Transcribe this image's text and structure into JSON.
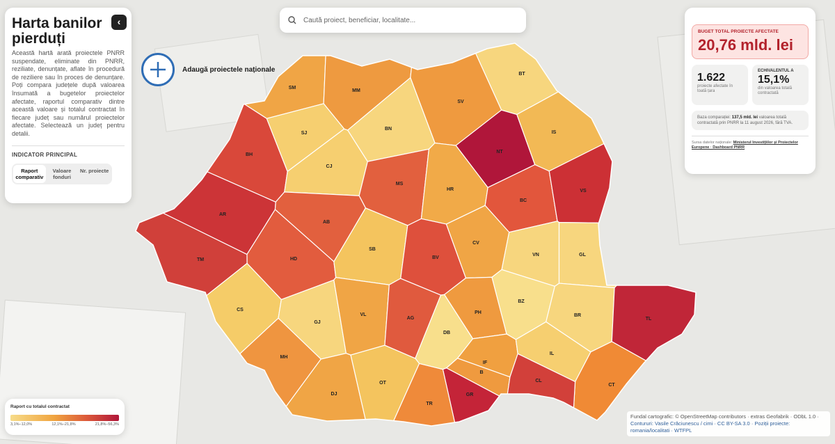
{
  "sidebar": {
    "title": "Harta banilor pierduți",
    "description": "Această hartă arată proiectele PNRR suspendate, eliminate din PNRR, reziliate, denunțate, aflate în procedură de reziliere sau în proces de denunțare. Poți compara județele după valoarea însumată a bugetelor proiectelor afectate, raportul comparativ dintre această valoare și totalul contractat în fiecare județ sau numărul proiectelor afectate. Selectează un județ pentru detalii.",
    "indicator_heading": "INDICATOR PRINCIPAL",
    "tabs": [
      "Raport comparativ",
      "Valoare fonduri",
      "Nr. proiecte"
    ]
  },
  "search": {
    "placeholder": "Caută proiect, beneficiar, localitate..."
  },
  "add_button": {
    "label": "Adaugă proiectele naționale"
  },
  "summary": {
    "budget_label": "BUGET TOTAL PROIECTE AFECTATE",
    "budget_value": "20,76 mld. lei",
    "projects_value": "1.622",
    "projects_caption": "proiecte afectate în toată țara",
    "share_label": "ECHIVALENTUL A",
    "share_value": "15,1%",
    "share_caption": "din valoarea totală contractată",
    "base_prefix": "Baza comparației:",
    "base_value": "137,5 mld. lei",
    "base_suffix": "valoarea totală contractată prin PNRR la 11 august 2026, fără TVA.",
    "source_prefix": "Sursa datelor naționale:",
    "source_link": "Ministerul Investițiilor și Proiectelor Europene · Dashboard PNRR"
  },
  "legend": {
    "title": "Raport cu totalul contractat",
    "ranges": [
      "3,1%–12,0%",
      "12,1%–21,8%",
      "21,8%–56,3%"
    ]
  },
  "attribution": {
    "line1": "Fundal cartografic: © OpenStreetMap contributors · extras Geofabrik · ODbL 1.0 ·",
    "line2": "Contururi: Vasile Crăciunescu / cimi · CC BY-SA 3.0 · Poziții proiecte:",
    "line3": "romania/localitati · WTFPL"
  },
  "counties": [
    {
      "code": "SM",
      "color": "#f0a545"
    },
    {
      "code": "MM",
      "color": "#ee9a40"
    },
    {
      "code": "BT",
      "color": "#f7d67e"
    },
    {
      "code": "SV",
      "color": "#ef9a3f"
    },
    {
      "code": "BH",
      "color": "#d9483a"
    },
    {
      "code": "SJ",
      "color": "#f6cf70"
    },
    {
      "code": "BN",
      "color": "#f7d67e"
    },
    {
      "code": "NT",
      "color": "#b0163a"
    },
    {
      "code": "IS",
      "color": "#f2b955"
    },
    {
      "code": "CJ",
      "color": "#f6cf70"
    },
    {
      "code": "MS",
      "color": "#e2603e"
    },
    {
      "code": "HR",
      "color": "#f1aa48"
    },
    {
      "code": "BC",
      "color": "#e2563c"
    },
    {
      "code": "VS",
      "color": "#cc3035"
    },
    {
      "code": "AR",
      "color": "#cc3437"
    },
    {
      "code": "AB",
      "color": "#e2603e"
    },
    {
      "code": "HD",
      "color": "#e25c3e"
    },
    {
      "code": "TM",
      "color": "#d0403a"
    },
    {
      "code": "SB",
      "color": "#f4c45e"
    },
    {
      "code": "BV",
      "color": "#de503c"
    },
    {
      "code": "CV",
      "color": "#f0a545"
    },
    {
      "code": "VN",
      "color": "#f7d67e"
    },
    {
      "code": "GL",
      "color": "#f7d67e"
    },
    {
      "code": "CS",
      "color": "#f5cc68"
    },
    {
      "code": "GJ",
      "color": "#f7d67e"
    },
    {
      "code": "VL",
      "color": "#f0a545"
    },
    {
      "code": "AG",
      "color": "#e05a3e"
    },
    {
      "code": "PH",
      "color": "#ef9a3f"
    },
    {
      "code": "BZ",
      "color": "#f8df8c"
    },
    {
      "code": "BR",
      "color": "#f7d67e"
    },
    {
      "code": "TL",
      "color": "#c02638"
    },
    {
      "code": "DB",
      "color": "#f8df8c"
    },
    {
      "code": "IF",
      "color": "#f0a040"
    },
    {
      "code": "B",
      "color": "#ef9a3f"
    },
    {
      "code": "IL",
      "color": "#f6cf70"
    },
    {
      "code": "CT",
      "color": "#f08a35"
    },
    {
      "code": "CL",
      "color": "#d2403a"
    },
    {
      "code": "GR",
      "color": "#c42438"
    },
    {
      "code": "MH",
      "color": "#ef9540"
    },
    {
      "code": "DJ",
      "color": "#f0a545"
    },
    {
      "code": "OT",
      "color": "#f4c45e"
    },
    {
      "code": "TR",
      "color": "#ef8a3a"
    }
  ]
}
